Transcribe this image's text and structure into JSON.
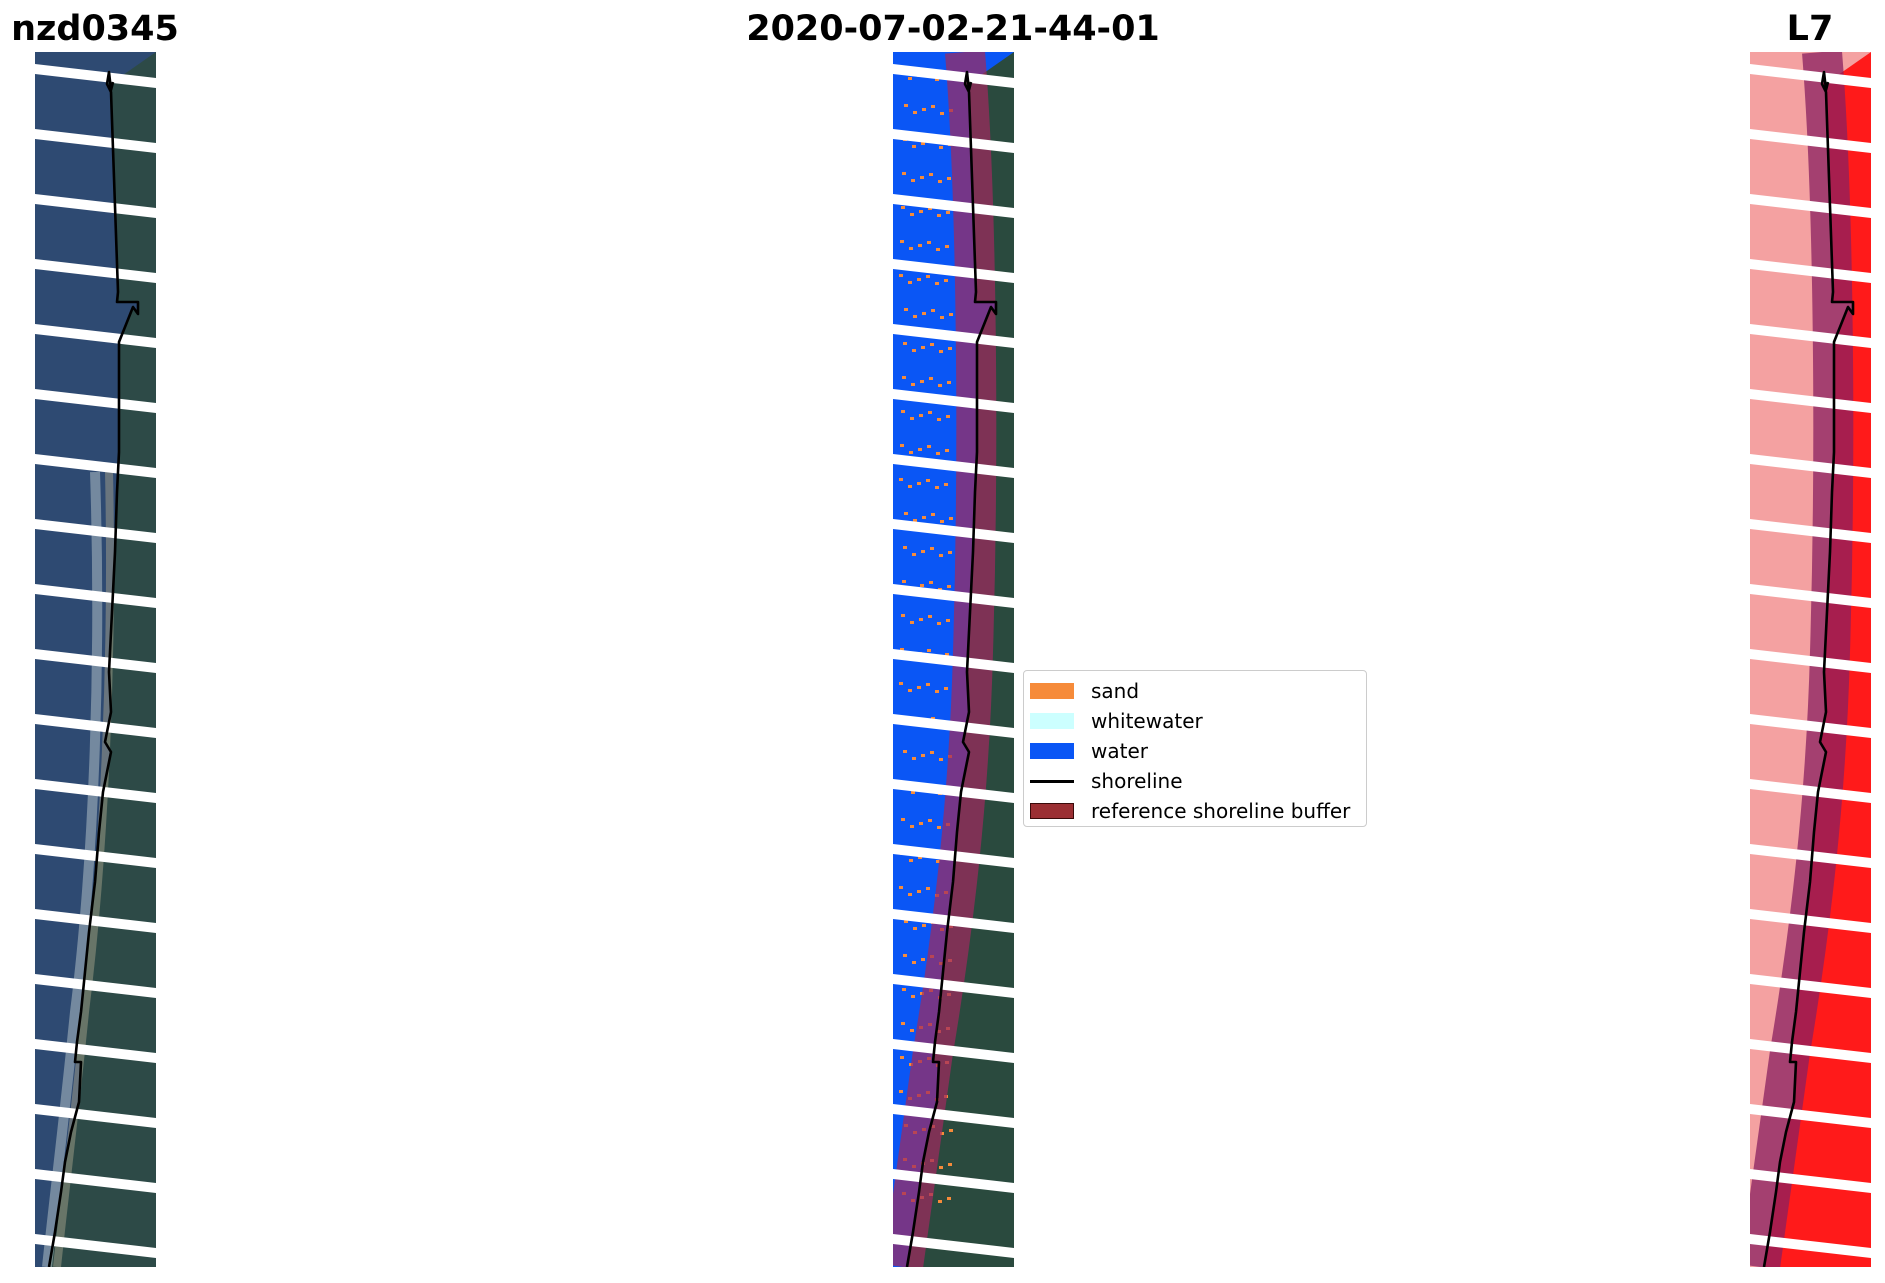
{
  "header": {
    "site_id": "nzd0345",
    "date": "2020-07-02-21-44-01",
    "satellite": "L7"
  },
  "panels": [
    {
      "name": "rgb"
    },
    {
      "name": "classified"
    },
    {
      "name": "index"
    }
  ],
  "legend": {
    "items": [
      {
        "label": "sand",
        "color": "#f68b3a",
        "kind": "patch"
      },
      {
        "label": "whitewater",
        "color": "#ccffff",
        "kind": "patch"
      },
      {
        "label": "water",
        "color": "#0a56f5",
        "kind": "patch"
      },
      {
        "label": "shoreline",
        "color": "#000000",
        "kind": "line"
      },
      {
        "label": "reference shoreline buffer",
        "color": "#9b2f33",
        "kind": "patch"
      }
    ]
  },
  "colors": {
    "ocean_rgb": "#2e4a72",
    "land_rgb": "#2d4a40",
    "water_class": "#0a56f5",
    "sand_class": "#f68b3a",
    "buffer_overlay": "#a02a5e",
    "index_red": "#ff1a1a",
    "index_pale": "#f4a1a1",
    "shoreline": "#000000"
  }
}
